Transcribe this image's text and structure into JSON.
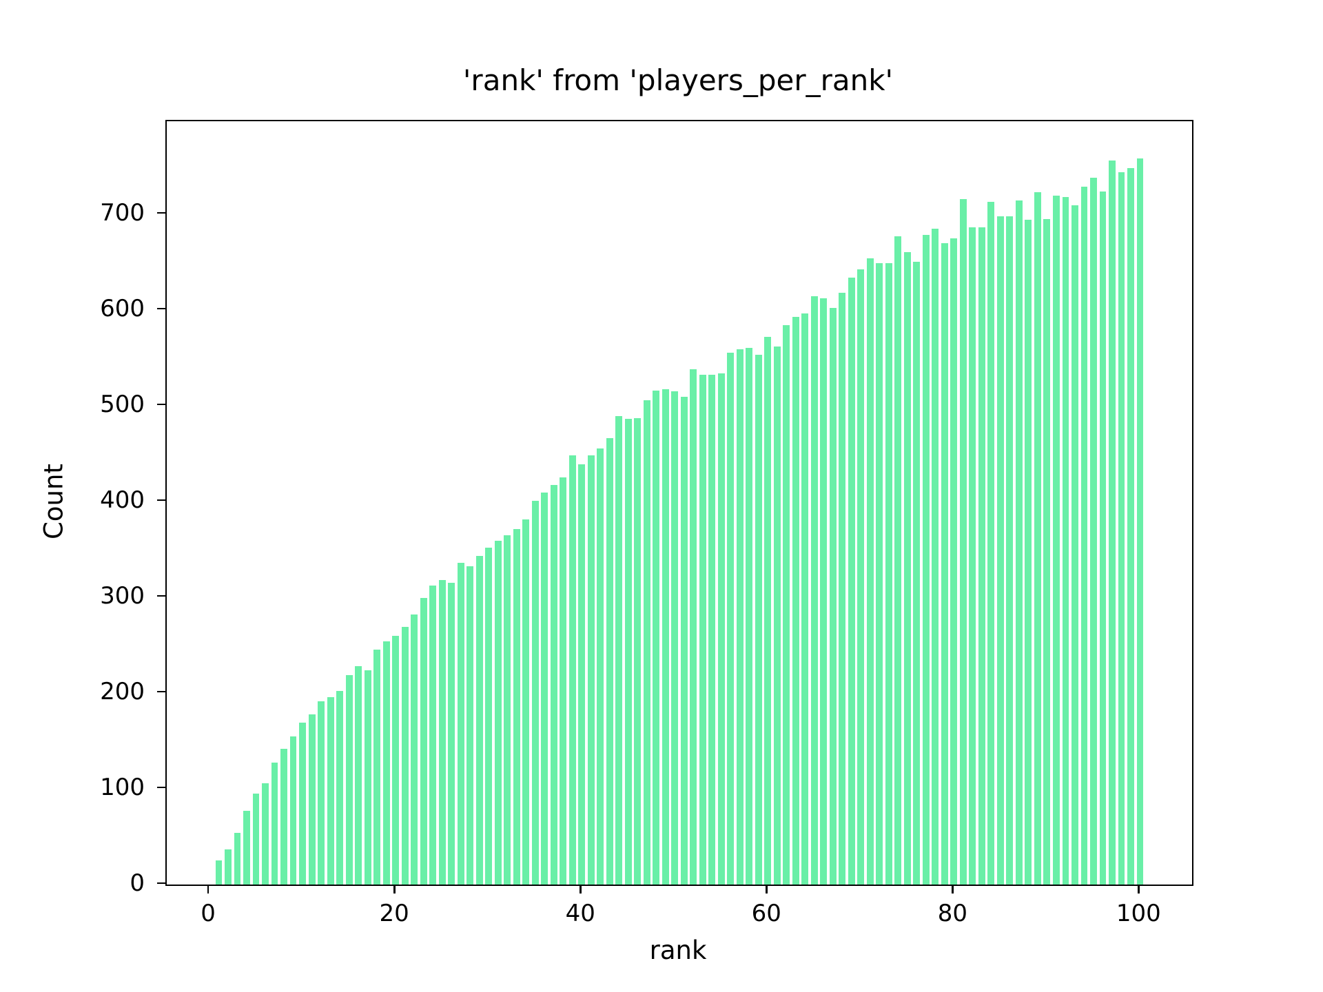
{
  "figure": {
    "background": "#ffffff",
    "axis_color": "#000000"
  },
  "chart_data": {
    "type": "bar",
    "title": "'rank' from 'players_per_rank'",
    "xlabel": "rank",
    "ylabel": "Count",
    "bar_color": "#69efa7",
    "grid": false,
    "legend": null,
    "xlim": [
      -4.6,
      105.6
    ],
    "ylim": [
      0,
      797
    ],
    "xticks": [
      0,
      20,
      40,
      60,
      80,
      100
    ],
    "yticks": [
      0,
      100,
      200,
      300,
      400,
      500,
      600,
      700
    ],
    "x": [
      1,
      2,
      3,
      4,
      5,
      6,
      7,
      8,
      9,
      10,
      11,
      12,
      13,
      14,
      15,
      16,
      17,
      18,
      19,
      20,
      21,
      22,
      23,
      24,
      25,
      26,
      27,
      28,
      29,
      30,
      31,
      32,
      33,
      34,
      35,
      36,
      37,
      38,
      39,
      40,
      41,
      42,
      43,
      44,
      45,
      46,
      47,
      48,
      49,
      50,
      51,
      52,
      53,
      54,
      55,
      56,
      57,
      58,
      59,
      60,
      61,
      62,
      63,
      64,
      65,
      66,
      67,
      68,
      69,
      70,
      71,
      72,
      73,
      74,
      75,
      76,
      77,
      78,
      79,
      80,
      81,
      82,
      83,
      84,
      85,
      86,
      87,
      88,
      89,
      90,
      91,
      92,
      93,
      94,
      95,
      96,
      97,
      98,
      99,
      100
    ],
    "values": [
      25,
      37,
      54,
      77,
      95,
      106,
      127,
      142,
      155,
      169,
      178,
      191,
      196,
      202,
      219,
      228,
      224,
      245,
      254,
      260,
      269,
      282,
      299,
      312,
      318,
      315,
      336,
      332,
      343,
      352,
      359,
      365,
      371,
      381,
      401,
      409,
      417,
      425,
      448,
      439,
      448,
      455,
      466,
      489,
      486,
      487,
      506,
      516,
      517,
      515,
      509,
      538,
      532,
      532,
      534,
      555,
      559,
      560,
      553,
      572,
      562,
      584,
      593,
      596,
      614,
      612,
      602,
      618,
      634,
      642,
      654,
      649,
      649,
      677,
      660,
      650,
      678,
      685,
      670,
      675,
      716,
      686,
      686,
      713,
      698,
      698,
      714,
      694,
      723,
      695,
      719,
      718,
      709,
      729,
      738,
      724,
      756,
      744,
      748,
      758
    ]
  }
}
